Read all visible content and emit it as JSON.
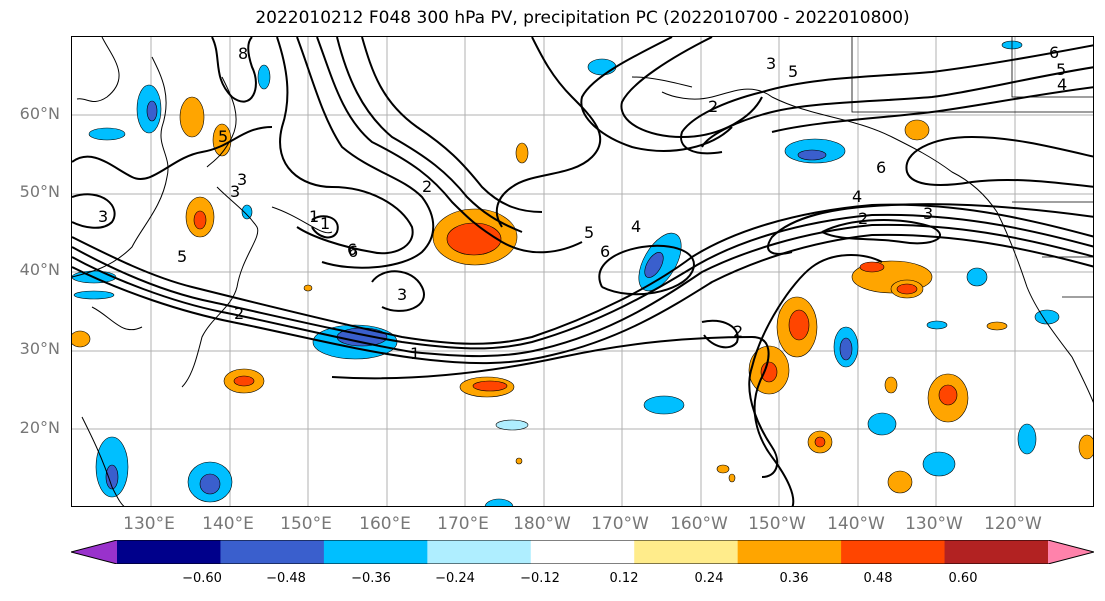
{
  "title": "2022010212 F048 300 hPa PV, precipitation PC (2022010700 - 2022010800)",
  "lat_labels": [
    "60°N",
    "50°N",
    "40°N",
    "30°N",
    "20°N"
  ],
  "lon_labels": [
    "130°E",
    "140°E",
    "150°E",
    "160°E",
    "170°E",
    "180°W",
    "170°W",
    "160°W",
    "150°W",
    "140°W",
    "130°W",
    "120°W"
  ],
  "colorbar": {
    "colors": [
      "#9932cc",
      "#00008b",
      "#3a5fcd",
      "#00bfff",
      "#afeeff",
      "#ffffff",
      "#ffec8b",
      "#ffa500",
      "#ff4500",
      "#b22222",
      "#ff82ab"
    ],
    "ticks": [
      "−0.60",
      "−0.48",
      "−0.36",
      "−0.24",
      "−0.12",
      "0.12",
      "0.24",
      "0.36",
      "0.48",
      "0.60"
    ]
  },
  "contour_labels": [
    "8",
    "3",
    "5",
    "1",
    "6",
    "2",
    "3",
    "1",
    "5",
    "3",
    "1",
    "3",
    "2",
    "6",
    "6",
    "5",
    "4",
    "2",
    "2",
    "6",
    "4",
    "3",
    "3",
    "5",
    "4",
    "5",
    "6",
    "2"
  ]
}
